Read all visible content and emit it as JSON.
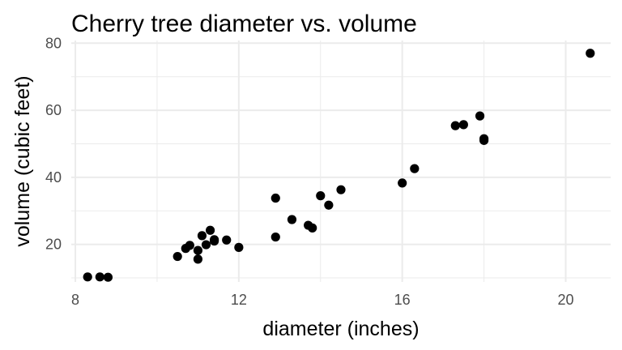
{
  "chart_data": {
    "type": "scatter",
    "title": "Cherry tree diameter vs. volume",
    "xlabel": "diameter (inches)",
    "ylabel": "volume (cubic feet)",
    "xlim": [
      7.9,
      21.1
    ],
    "ylim": [
      8.8,
      80.8
    ],
    "x_ticks": [
      8,
      12,
      16,
      20
    ],
    "x_tick_labels": [
      "8",
      "12",
      "16",
      "20"
    ],
    "y_ticks": [
      20,
      40,
      60,
      80
    ],
    "y_tick_labels": [
      "20",
      "40",
      "60",
      "80"
    ],
    "x_minor_ticks": [
      10,
      14,
      18
    ],
    "y_minor_ticks": [
      10,
      30,
      50,
      70
    ],
    "grid": true,
    "legend": "none",
    "point_color": "#000000",
    "points": [
      {
        "x": 8.3,
        "y": 10.3
      },
      {
        "x": 8.6,
        "y": 10.3
      },
      {
        "x": 8.8,
        "y": 10.2
      },
      {
        "x": 10.5,
        "y": 16.4
      },
      {
        "x": 10.7,
        "y": 18.8
      },
      {
        "x": 10.8,
        "y": 19.7
      },
      {
        "x": 11.0,
        "y": 15.6
      },
      {
        "x": 11.0,
        "y": 18.2
      },
      {
        "x": 11.1,
        "y": 22.6
      },
      {
        "x": 11.2,
        "y": 19.9
      },
      {
        "x": 11.3,
        "y": 24.2
      },
      {
        "x": 11.4,
        "y": 21.0
      },
      {
        "x": 11.4,
        "y": 21.4
      },
      {
        "x": 11.7,
        "y": 21.3
      },
      {
        "x": 12.0,
        "y": 19.1
      },
      {
        "x": 12.9,
        "y": 22.2
      },
      {
        "x": 12.9,
        "y": 33.8
      },
      {
        "x": 13.3,
        "y": 27.4
      },
      {
        "x": 13.7,
        "y": 25.7
      },
      {
        "x": 13.8,
        "y": 24.9
      },
      {
        "x": 14.0,
        "y": 34.5
      },
      {
        "x": 14.2,
        "y": 31.7
      },
      {
        "x": 14.5,
        "y": 36.3
      },
      {
        "x": 16.0,
        "y": 38.3
      },
      {
        "x": 16.3,
        "y": 42.6
      },
      {
        "x": 17.3,
        "y": 55.4
      },
      {
        "x": 17.5,
        "y": 55.7
      },
      {
        "x": 17.9,
        "y": 58.3
      },
      {
        "x": 18.0,
        "y": 51.5
      },
      {
        "x": 18.0,
        "y": 51.0
      },
      {
        "x": 20.6,
        "y": 77.0
      }
    ]
  }
}
